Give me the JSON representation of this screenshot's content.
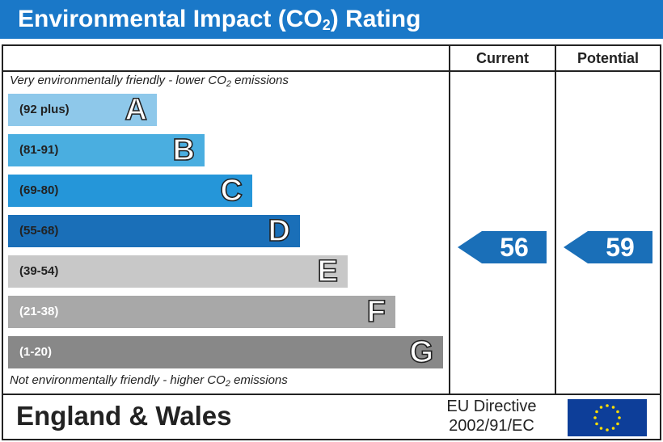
{
  "header": {
    "title_before": "Environmental Impact (CO",
    "title_sub": "2",
    "title_after": ") Rating",
    "background": "#1a78c8"
  },
  "columns": {
    "current": "Current",
    "potential": "Potential"
  },
  "notes": {
    "top_before": "Very environmentally friendly - lower CO",
    "top_sub": "2",
    "top_after": " emissions",
    "bottom_before": "Not environmentally friendly - higher CO",
    "bottom_sub": "2",
    "bottom_after": " emissions"
  },
  "chart_data": {
    "type": "bar",
    "title": "Environmental Impact (CO2) Rating",
    "bands": [
      {
        "letter": "A",
        "range": "(92 plus)",
        "min": 92,
        "max": 100,
        "color": "#8ec8ea",
        "text_color": "#222222"
      },
      {
        "letter": "B",
        "range": "(81-91)",
        "min": 81,
        "max": 91,
        "color": "#4aaee0",
        "text_color": "#222222"
      },
      {
        "letter": "C",
        "range": "(69-80)",
        "min": 69,
        "max": 80,
        "color": "#2596d9",
        "text_color": "#222222"
      },
      {
        "letter": "D",
        "range": "(55-68)",
        "min": 55,
        "max": 68,
        "color": "#1a6fb8",
        "text_color": "#222222"
      },
      {
        "letter": "E",
        "range": "(39-54)",
        "min": 39,
        "max": 54,
        "color": "#c8c8c8",
        "text_color": "#222222"
      },
      {
        "letter": "F",
        "range": "(21-38)",
        "min": 21,
        "max": 38,
        "color": "#a8a8a8",
        "text_color": "#ffffff"
      },
      {
        "letter": "G",
        "range": "(1-20)",
        "min": 1,
        "max": 20,
        "color": "#888888",
        "text_color": "#ffffff"
      }
    ],
    "current": {
      "value": 56,
      "band": "D"
    },
    "potential": {
      "value": 59,
      "band": "D"
    },
    "arrow_color": "#1a6fb8"
  },
  "footer": {
    "region": "England & Wales",
    "directive_line1": "EU Directive",
    "directive_line2": "2002/91/EC",
    "flag_color": "#0d3e99",
    "star_color": "#ffde00"
  }
}
